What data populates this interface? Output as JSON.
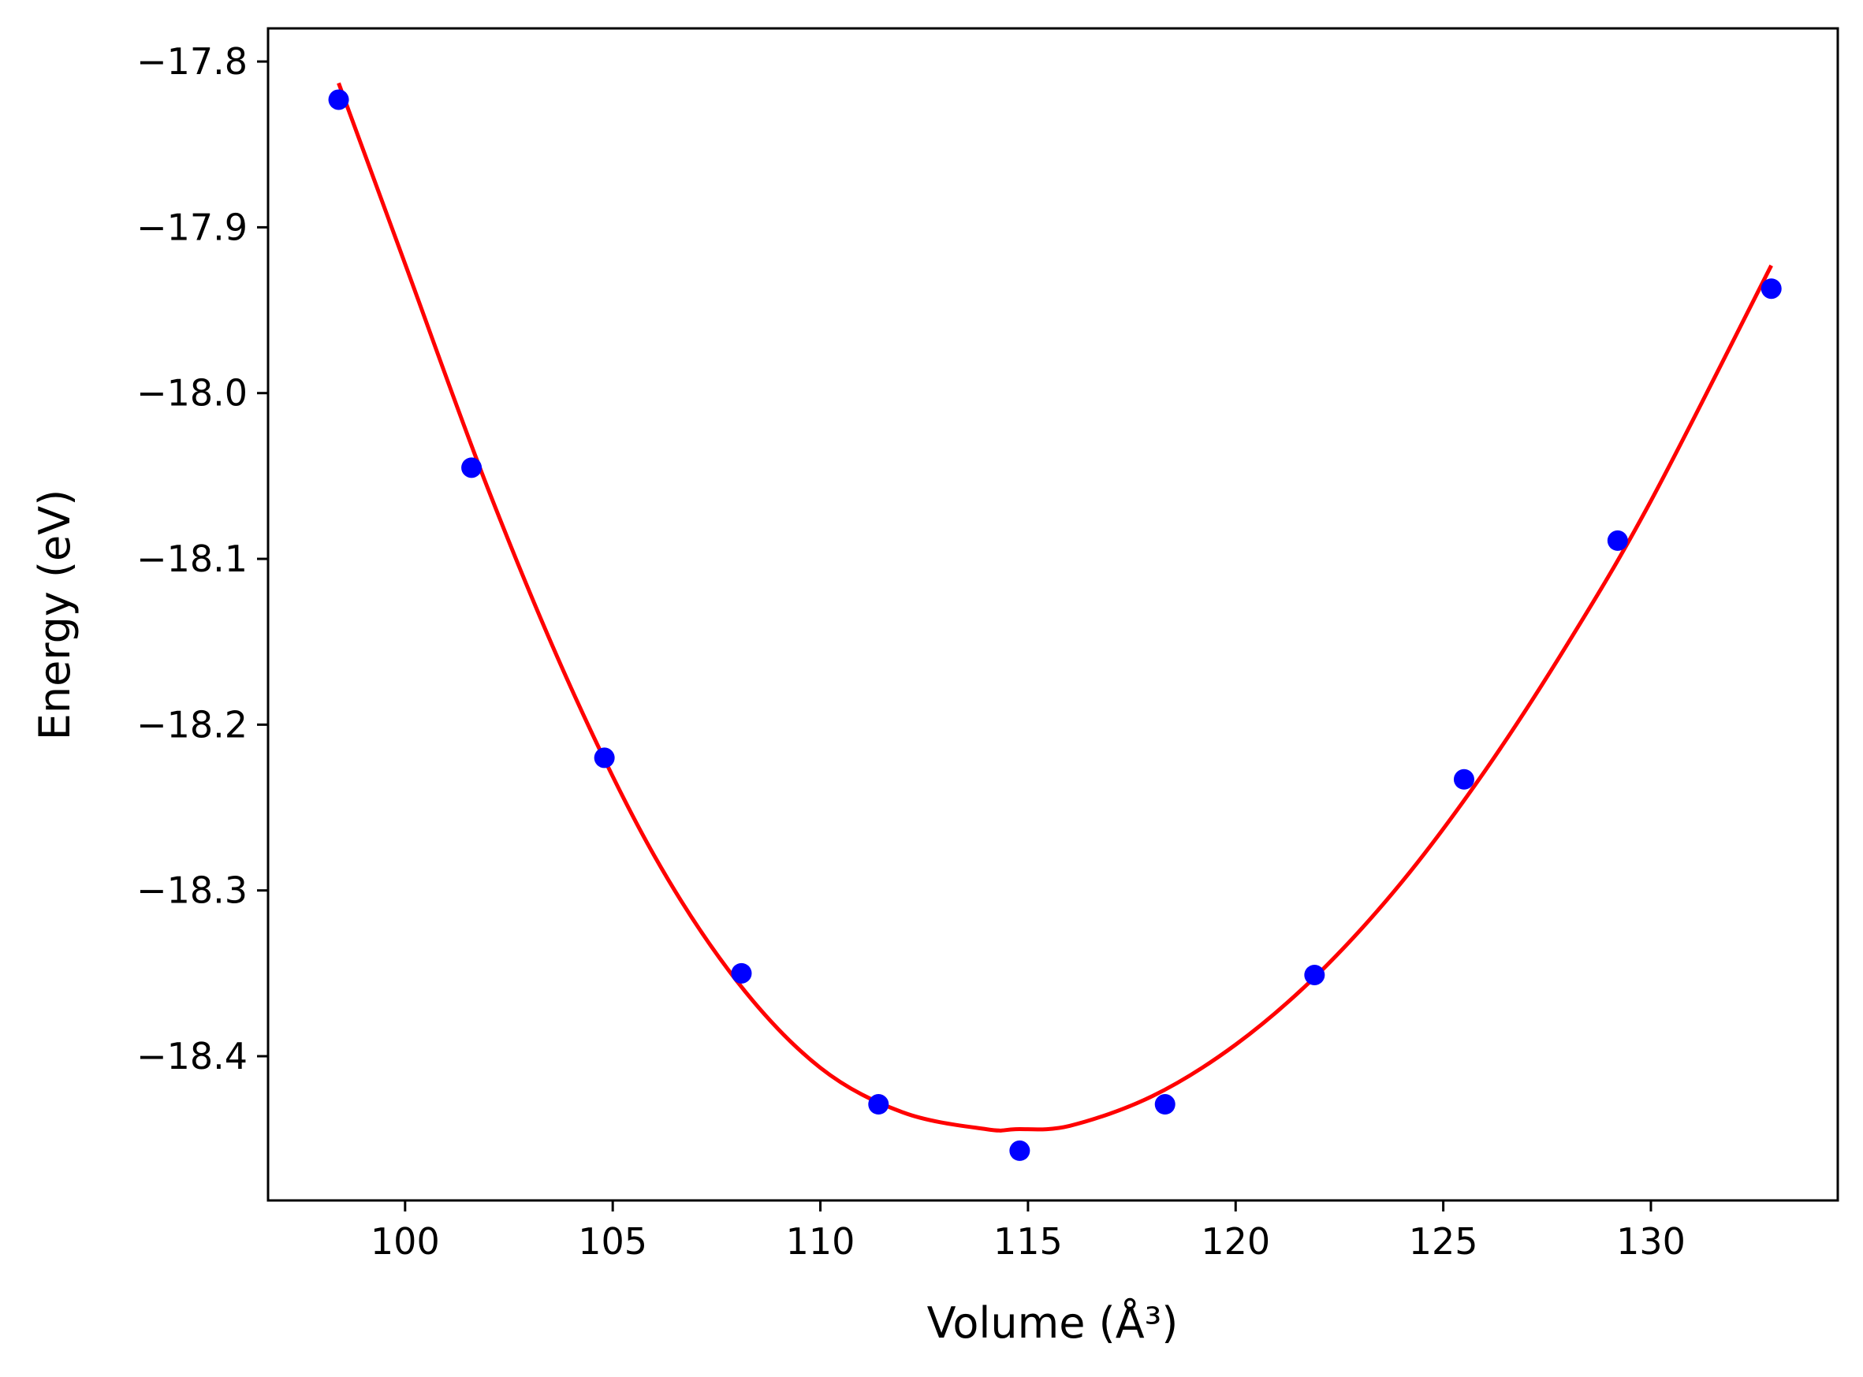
{
  "chart_data": {
    "type": "scatter",
    "xlabel": "Volume (Å³)",
    "ylabel": "Energy (eV)",
    "xlim": [
      96.7,
      134.5
    ],
    "ylim": [
      -18.487,
      -17.78
    ],
    "xticks": [
      100,
      105,
      110,
      115,
      120,
      125,
      130
    ],
    "yticks": [
      -17.8,
      -17.9,
      -18.0,
      -18.1,
      -18.2,
      -18.3,
      -18.4
    ],
    "xtick_labels": [
      "100",
      "105",
      "110",
      "115",
      "120",
      "125",
      "130"
    ],
    "ytick_labels": [
      "−17.8",
      "−17.9",
      "−18.0",
      "−18.1",
      "−18.2",
      "−18.3",
      "−18.4"
    ],
    "grid": false,
    "series": [
      {
        "kind": "points",
        "color": "#0000ff",
        "x": [
          98.4,
          101.6,
          104.8,
          108.1,
          111.4,
          114.8,
          118.3,
          121.9,
          125.5,
          129.2,
          132.9
        ],
        "y": [
          -17.823,
          -18.045,
          -18.22,
          -18.35,
          -18.429,
          -18.457,
          -18.429,
          -18.351,
          -18.233,
          -18.089,
          -17.937
        ]
      },
      {
        "kind": "fit-curve",
        "color": "#ff0000",
        "x": [
          98.4,
          100.0,
          102.0,
          104.0,
          106.0,
          108.0,
          110.0,
          112.0,
          114.0,
          114.7,
          116.0,
          118.0,
          120.0,
          122.0,
          124.0,
          126.0,
          128.0,
          130.0,
          132.9
        ],
        "y": [
          -17.813,
          -17.922,
          -18.058,
          -18.178,
          -18.279,
          -18.355,
          -18.407,
          -18.434,
          -18.444,
          -18.444,
          -18.442,
          -18.424,
          -18.393,
          -18.35,
          -18.295,
          -18.228,
          -18.151,
          -18.065,
          -17.923
        ]
      }
    ]
  }
}
